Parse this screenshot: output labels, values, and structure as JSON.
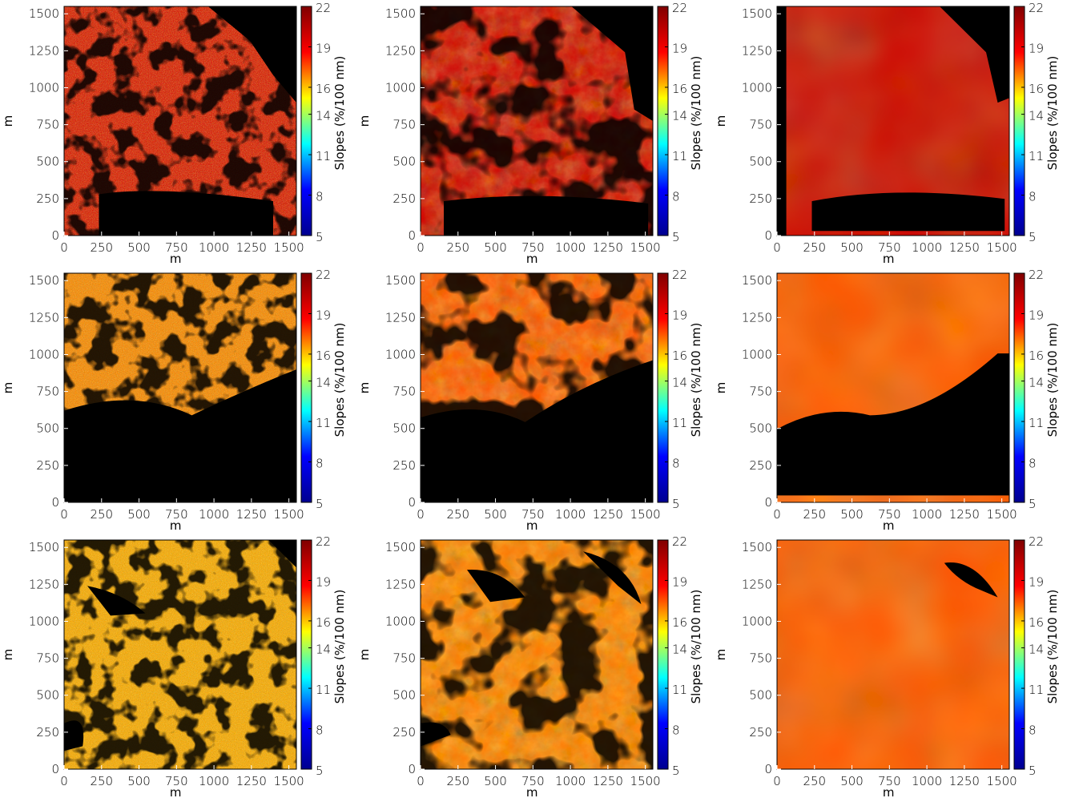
{
  "colorscale": {
    "type": "jet",
    "stops": [
      "#00008f",
      "#0000ff",
      "#00ffff",
      "#ffff00",
      "#ff0000",
      "#800000"
    ]
  },
  "chart_data": [
    {
      "type": "heatmap",
      "panel": "row1-col1",
      "texture": "noisy",
      "xlabel": "m",
      "ylabel": "m",
      "colorbar_label": "Slopes (%/100 nm)",
      "xlim": [
        0,
        1550
      ],
      "ylim": [
        0,
        1550
      ],
      "xticks": [
        0,
        250,
        500,
        750,
        1000,
        1250,
        1500
      ],
      "yticks": [
        0,
        250,
        500,
        750,
        1000,
        1250,
        1500
      ],
      "colorbar_ticks": [
        5,
        8,
        11,
        14,
        16,
        19,
        22
      ],
      "clim": [
        5,
        22
      ],
      "dominant_slope": 19.5
    },
    {
      "type": "heatmap",
      "panel": "row1-col2",
      "texture": "medium",
      "xlabel": "m",
      "ylabel": "m",
      "colorbar_label": "Slopes (%/100 nm)",
      "xlim": [
        0,
        1550
      ],
      "ylim": [
        0,
        1550
      ],
      "xticks": [
        0,
        250,
        500,
        750,
        1000,
        1250,
        1500
      ],
      "yticks": [
        0,
        250,
        500,
        750,
        1000,
        1250,
        1500
      ],
      "colorbar_ticks": [
        5,
        8,
        11,
        14,
        16,
        19,
        22
      ],
      "clim": [
        5,
        22
      ],
      "dominant_slope": 19.8
    },
    {
      "type": "heatmap",
      "panel": "row1-col3",
      "texture": "smooth",
      "xlabel": "m",
      "ylabel": "m",
      "colorbar_label": "Slopes (%/100 nm)",
      "xlim": [
        0,
        1550
      ],
      "ylim": [
        0,
        1550
      ],
      "xticks": [
        0,
        250,
        500,
        750,
        1000,
        1250,
        1500
      ],
      "yticks": [
        0,
        250,
        500,
        750,
        1000,
        1250,
        1500
      ],
      "colorbar_ticks": [
        5,
        8,
        11,
        14,
        16,
        19,
        22
      ],
      "clim": [
        5,
        22
      ],
      "dominant_slope": 20.0
    },
    {
      "type": "heatmap",
      "panel": "row2-col1",
      "texture": "noisy",
      "xlabel": "m",
      "ylabel": "m",
      "colorbar_label": "Slopes (%/100 nm)",
      "xlim": [
        0,
        1550
      ],
      "ylim": [
        0,
        1550
      ],
      "xticks": [
        0,
        250,
        500,
        750,
        1000,
        1250,
        1500
      ],
      "yticks": [
        0,
        250,
        500,
        750,
        1000,
        1250,
        1500
      ],
      "colorbar_ticks": [
        5,
        8,
        11,
        14,
        16,
        19,
        22
      ],
      "clim": [
        5,
        22
      ],
      "dominant_slope": 17.0
    },
    {
      "type": "heatmap",
      "panel": "row2-col2",
      "texture": "medium",
      "xlabel": "m",
      "ylabel": "m",
      "colorbar_label": "Slopes (%/100 nm)",
      "xlim": [
        0,
        1550
      ],
      "ylim": [
        0,
        1550
      ],
      "xticks": [
        0,
        250,
        500,
        750,
        1000,
        1250,
        1500
      ],
      "yticks": [
        0,
        250,
        500,
        750,
        1000,
        1250,
        1500
      ],
      "colorbar_ticks": [
        5,
        8,
        11,
        14,
        16,
        19,
        22
      ],
      "clim": [
        5,
        22
      ],
      "dominant_slope": 17.5
    },
    {
      "type": "heatmap",
      "panel": "row2-col3",
      "texture": "smooth",
      "xlabel": "m",
      "ylabel": "m",
      "colorbar_label": "Slopes (%/100 nm)",
      "xlim": [
        0,
        1550
      ],
      "ylim": [
        0,
        1550
      ],
      "xticks": [
        0,
        250,
        500,
        750,
        1000,
        1250,
        1500
      ],
      "yticks": [
        0,
        250,
        500,
        750,
        1000,
        1250,
        1500
      ],
      "colorbar_ticks": [
        5,
        8,
        11,
        14,
        16,
        19,
        22
      ],
      "clim": [
        5,
        22
      ],
      "dominant_slope": 17.5
    },
    {
      "type": "heatmap",
      "panel": "row3-col1",
      "texture": "noisy",
      "xlabel": "m",
      "ylabel": "m",
      "colorbar_label": "Slopes (%/100 nm)",
      "xlim": [
        0,
        1550
      ],
      "ylim": [
        0,
        1550
      ],
      "xticks": [
        0,
        250,
        500,
        750,
        1000,
        1250,
        1500
      ],
      "yticks": [
        0,
        250,
        500,
        750,
        1000,
        1250,
        1500
      ],
      "colorbar_ticks": [
        5,
        8,
        11,
        14,
        16,
        19,
        22
      ],
      "clim": [
        5,
        22
      ],
      "dominant_slope": 16.5
    },
    {
      "type": "heatmap",
      "panel": "row3-col2",
      "texture": "medium",
      "xlabel": "m",
      "ylabel": "m",
      "colorbar_label": "Slopes (%/100 nm)",
      "xlim": [
        0,
        1550
      ],
      "ylim": [
        0,
        1550
      ],
      "xticks": [
        0,
        250,
        500,
        750,
        1000,
        1250,
        1500
      ],
      "yticks": [
        0,
        250,
        500,
        750,
        1000,
        1250,
        1500
      ],
      "colorbar_ticks": [
        5,
        8,
        11,
        14,
        16,
        19,
        22
      ],
      "clim": [
        5,
        22
      ],
      "dominant_slope": 17.0
    },
    {
      "type": "heatmap",
      "panel": "row3-col3",
      "texture": "smooth",
      "xlabel": "m",
      "ylabel": "m",
      "colorbar_label": "Slopes (%/100 nm)",
      "xlim": [
        0,
        1550
      ],
      "ylim": [
        0,
        1550
      ],
      "xticks": [
        0,
        250,
        500,
        750,
        1000,
        1250,
        1500
      ],
      "yticks": [
        0,
        250,
        500,
        750,
        1000,
        1250,
        1500
      ],
      "colorbar_ticks": [
        5,
        8,
        11,
        14,
        16,
        19,
        22
      ],
      "clim": [
        5,
        22
      ],
      "dominant_slope": 17.5
    }
  ]
}
